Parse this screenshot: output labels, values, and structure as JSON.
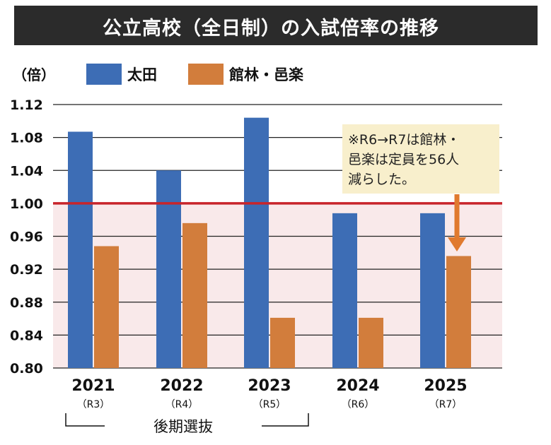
{
  "chart_data": {
    "type": "bar",
    "title": "公立高校（全日制）の入試倍率の推移",
    "ylabel": "（倍）",
    "ylim": [
      0.8,
      1.12
    ],
    "yticks": [
      "0.80",
      "0.84",
      "0.88",
      "0.92",
      "0.96",
      "1.00",
      "1.04",
      "1.08",
      "1.12"
    ],
    "reference_line": 1.0,
    "categories": [
      "2021",
      "2022",
      "2023",
      "2024",
      "2025"
    ],
    "sublabels": [
      "（R3）",
      "（R4）",
      "（R5）",
      "（R6）",
      "（R7）"
    ],
    "series": [
      {
        "name": "太田",
        "color": "#3d6db5",
        "values": [
          1.087,
          1.04,
          1.104,
          0.988,
          0.988
        ]
      },
      {
        "name": "館林・邑楽",
        "color": "#d27d3c",
        "values": [
          0.948,
          0.976,
          0.861,
          0.861,
          0.936
        ]
      }
    ],
    "annotation": [
      "※R6→R7は館林・",
      "邑楽は定員を56人",
      "減らした。"
    ],
    "bracket_label": "後期選抜"
  },
  "colors": {
    "ref_line": "#c8242b",
    "below_fill": "#f9e9ea",
    "grid": "#222222",
    "note_bg": "#f8efcc"
  }
}
